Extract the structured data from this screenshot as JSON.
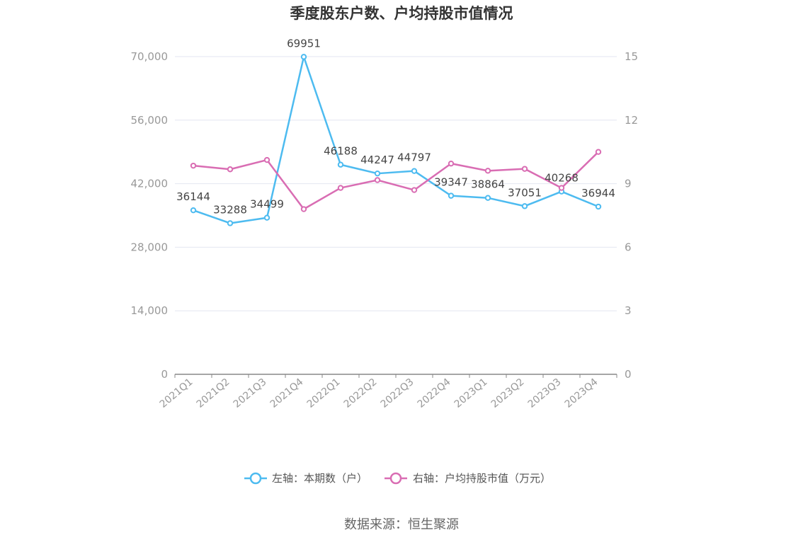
{
  "chart_data": {
    "type": "line",
    "title": "季度股东户数、户均持股市值情况",
    "categories": [
      "2021Q1",
      "2021Q2",
      "2021Q3",
      "2021Q4",
      "2022Q1",
      "2022Q2",
      "2022Q3",
      "2022Q4",
      "2023Q1",
      "2023Q2",
      "2023Q3",
      "2023Q4"
    ],
    "series": [
      {
        "name": "左轴：本期数（户）",
        "axis": "left",
        "color": "#4dbbf0",
        "values": [
          36144,
          33288,
          34499,
          69951,
          46188,
          44247,
          44797,
          39347,
          38864,
          37051,
          40268,
          36944
        ],
        "labels": [
          "36144",
          "33288",
          "34499",
          "69951",
          "46188",
          "44247",
          "44797",
          "39347",
          "38864",
          "37051",
          "40268",
          "36944"
        ]
      },
      {
        "name": "右轴：户均持股市值（万元）",
        "axis": "right",
        "color": "#d96db3",
        "values": [
          9.85,
          9.68,
          10.12,
          7.8,
          8.8,
          9.17,
          8.7,
          9.95,
          9.61,
          9.7,
          8.8,
          10.5
        ]
      }
    ],
    "y_left": {
      "ylim": [
        0,
        70000
      ],
      "ticks": [
        "0",
        "14,000",
        "28,000",
        "42,000",
        "56,000",
        "70,000"
      ]
    },
    "y_right": {
      "ylim": [
        0,
        15
      ],
      "ticks": [
        "0",
        "3",
        "6",
        "9",
        "12",
        "15"
      ]
    },
    "grid": true,
    "legend_position": "bottom",
    "source": "数据来源：恒生聚源"
  }
}
